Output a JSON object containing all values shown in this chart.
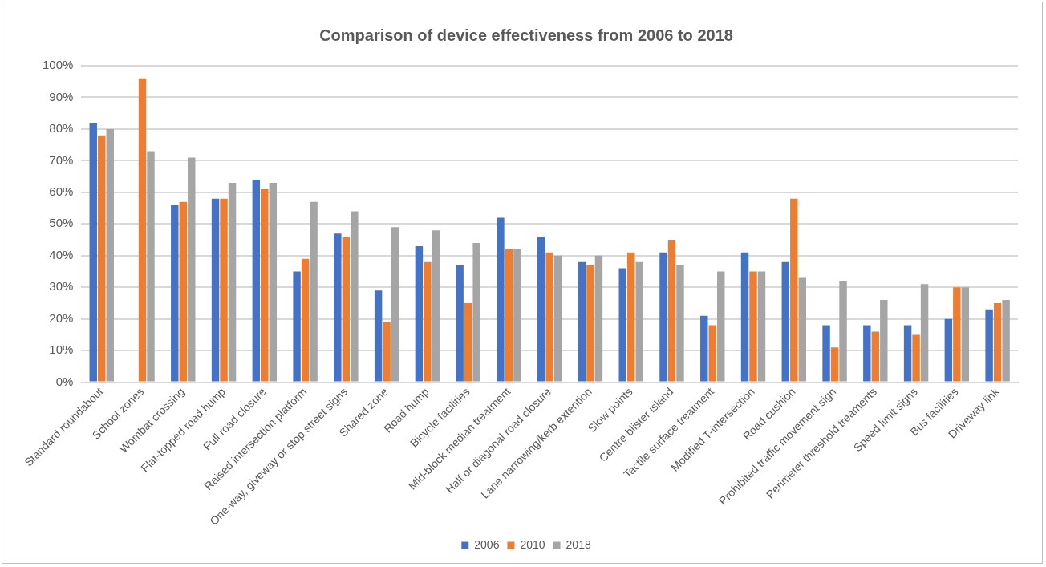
{
  "chart_data": {
    "type": "bar",
    "title": "Comparison of device effectiveness from 2006 to 2018",
    "categories": [
      "Standard roundabout",
      "School zones",
      "Wombat crossing",
      "Flat-topped road hump",
      "Full road closure",
      "Raised intersection platform",
      "One-way, giveway or stop street signs",
      "Shared zone",
      "Road hump",
      "Bicycle facilities",
      "Mid-block median treatment",
      "Half or diagonal road closure",
      "Lane narrowing/kerb extention",
      "Slow points",
      "Centre blister island",
      "Tactile surface treatment",
      "Modified T-intersection",
      "Road cushion",
      "Prohibited traffic movement sign",
      "Perimeter threshold treaments",
      "Speed limit signs",
      "Bus facilities",
      "Driveway link"
    ],
    "series": [
      {
        "name": "2006",
        "color": "#4472c4",
        "values": [
          82,
          null,
          56,
          58,
          64,
          35,
          47,
          29,
          43,
          37,
          52,
          46,
          38,
          36,
          41,
          21,
          41,
          38,
          18,
          18,
          18,
          20,
          23
        ]
      },
      {
        "name": "2010",
        "color": "#ed7d31",
        "values": [
          78,
          96,
          57,
          58,
          61,
          39,
          46,
          19,
          38,
          25,
          42,
          41,
          37,
          41,
          45,
          18,
          35,
          58,
          11,
          16,
          15,
          30,
          25
        ]
      },
      {
        "name": "2018",
        "color": "#a5a5a5",
        "values": [
          80,
          73,
          71,
          63,
          63,
          57,
          54,
          49,
          48,
          44,
          42,
          40,
          40,
          38,
          37,
          35,
          35,
          33,
          32,
          26,
          31,
          30,
          26
        ]
      }
    ],
    "ylim": [
      0,
      100
    ],
    "yticks": [
      {
        "value": 0,
        "label": "0%"
      },
      {
        "value": 10,
        "label": "10%"
      },
      {
        "value": 20,
        "label": "20%"
      },
      {
        "value": 30,
        "label": "30%"
      },
      {
        "value": 40,
        "label": "40%"
      },
      {
        "value": 50,
        "label": "50%"
      },
      {
        "value": 60,
        "label": "60%"
      },
      {
        "value": 70,
        "label": "70%"
      },
      {
        "value": 80,
        "label": "80%"
      },
      {
        "value": 90,
        "label": "90%"
      },
      {
        "value": 100,
        "label": "100%"
      }
    ],
    "grid": "y",
    "legend": "bottom"
  }
}
